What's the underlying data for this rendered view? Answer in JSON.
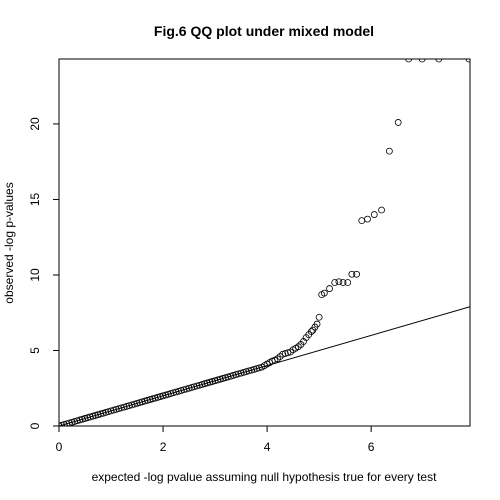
{
  "chart_data": {
    "type": "scatter",
    "title": "Fig.6 QQ plot under mixed model",
    "xlabel": "expected -log pvalue assuming null hypothesis true for every test",
    "ylabel": "observed -log p-values",
    "xlim": [
      0,
      7.9
    ],
    "ylim": [
      0,
      24.3
    ],
    "x_ticks": [
      0,
      2,
      4,
      6
    ],
    "x_tick_labels": [
      "0",
      "2",
      "4",
      "6"
    ],
    "y_ticks": [
      0,
      5,
      10,
      15,
      20
    ],
    "y_tick_labels": [
      "0",
      "5",
      "10",
      "15",
      "20"
    ],
    "grid": false,
    "reference_line": {
      "slope": 1,
      "intercept": 0
    },
    "points": [
      {
        "x": 0.0,
        "y": 0.0
      },
      {
        "x": 0.05,
        "y": 0.05
      },
      {
        "x": 0.1,
        "y": 0.1
      },
      {
        "x": 0.15,
        "y": 0.15
      },
      {
        "x": 0.2,
        "y": 0.2
      },
      {
        "x": 0.25,
        "y": 0.25
      },
      {
        "x": 0.3,
        "y": 0.3
      },
      {
        "x": 0.35,
        "y": 0.35
      },
      {
        "x": 0.4,
        "y": 0.4
      },
      {
        "x": 0.45,
        "y": 0.45
      },
      {
        "x": 0.5,
        "y": 0.5
      },
      {
        "x": 0.55,
        "y": 0.55
      },
      {
        "x": 0.6,
        "y": 0.6
      },
      {
        "x": 0.65,
        "y": 0.65
      },
      {
        "x": 0.7,
        "y": 0.7
      },
      {
        "x": 0.75,
        "y": 0.75
      },
      {
        "x": 0.8,
        "y": 0.8
      },
      {
        "x": 0.85,
        "y": 0.85
      },
      {
        "x": 0.9,
        "y": 0.9
      },
      {
        "x": 0.95,
        "y": 0.95
      },
      {
        "x": 1.0,
        "y": 1.0
      },
      {
        "x": 1.05,
        "y": 1.05
      },
      {
        "x": 1.1,
        "y": 1.1
      },
      {
        "x": 1.15,
        "y": 1.15
      },
      {
        "x": 1.2,
        "y": 1.2
      },
      {
        "x": 1.25,
        "y": 1.25
      },
      {
        "x": 1.3,
        "y": 1.3
      },
      {
        "x": 1.35,
        "y": 1.35
      },
      {
        "x": 1.4,
        "y": 1.4
      },
      {
        "x": 1.45,
        "y": 1.45
      },
      {
        "x": 1.5,
        "y": 1.5
      },
      {
        "x": 1.55,
        "y": 1.55
      },
      {
        "x": 1.6,
        "y": 1.6
      },
      {
        "x": 1.65,
        "y": 1.65
      },
      {
        "x": 1.7,
        "y": 1.7
      },
      {
        "x": 1.75,
        "y": 1.75
      },
      {
        "x": 1.8,
        "y": 1.8
      },
      {
        "x": 1.85,
        "y": 1.85
      },
      {
        "x": 1.9,
        "y": 1.9
      },
      {
        "x": 1.95,
        "y": 1.95
      },
      {
        "x": 2.0,
        "y": 2.0
      },
      {
        "x": 2.05,
        "y": 2.05
      },
      {
        "x": 2.1,
        "y": 2.1
      },
      {
        "x": 2.15,
        "y": 2.15
      },
      {
        "x": 2.2,
        "y": 2.2
      },
      {
        "x": 2.25,
        "y": 2.25
      },
      {
        "x": 2.3,
        "y": 2.3
      },
      {
        "x": 2.35,
        "y": 2.35
      },
      {
        "x": 2.4,
        "y": 2.4
      },
      {
        "x": 2.45,
        "y": 2.45
      },
      {
        "x": 2.5,
        "y": 2.5
      },
      {
        "x": 2.55,
        "y": 2.55
      },
      {
        "x": 2.6,
        "y": 2.6
      },
      {
        "x": 2.65,
        "y": 2.65
      },
      {
        "x": 2.7,
        "y": 2.7
      },
      {
        "x": 2.75,
        "y": 2.75
      },
      {
        "x": 2.8,
        "y": 2.8
      },
      {
        "x": 2.85,
        "y": 2.85
      },
      {
        "x": 2.9,
        "y": 2.9
      },
      {
        "x": 2.95,
        "y": 2.95
      },
      {
        "x": 3.0,
        "y": 3.0
      },
      {
        "x": 3.05,
        "y": 3.05
      },
      {
        "x": 3.1,
        "y": 3.1
      },
      {
        "x": 3.15,
        "y": 3.15
      },
      {
        "x": 3.2,
        "y": 3.2
      },
      {
        "x": 3.25,
        "y": 3.25
      },
      {
        "x": 3.3,
        "y": 3.3
      },
      {
        "x": 3.35,
        "y": 3.35
      },
      {
        "x": 3.4,
        "y": 3.4
      },
      {
        "x": 3.45,
        "y": 3.45
      },
      {
        "x": 3.5,
        "y": 3.5
      },
      {
        "x": 3.55,
        "y": 3.55
      },
      {
        "x": 3.6,
        "y": 3.6
      },
      {
        "x": 3.65,
        "y": 3.65
      },
      {
        "x": 3.7,
        "y": 3.7
      },
      {
        "x": 3.75,
        "y": 3.75
      },
      {
        "x": 3.8,
        "y": 3.8
      },
      {
        "x": 3.85,
        "y": 3.85
      },
      {
        "x": 3.9,
        "y": 3.9
      },
      {
        "x": 3.95,
        "y": 4.0
      },
      {
        "x": 4.0,
        "y": 4.1
      },
      {
        "x": 4.05,
        "y": 4.2
      },
      {
        "x": 4.1,
        "y": 4.3
      },
      {
        "x": 4.15,
        "y": 4.35
      },
      {
        "x": 4.2,
        "y": 4.45
      },
      {
        "x": 4.25,
        "y": 4.6
      },
      {
        "x": 4.3,
        "y": 4.75
      },
      {
        "x": 4.35,
        "y": 4.8
      },
      {
        "x": 4.4,
        "y": 4.85
      },
      {
        "x": 4.45,
        "y": 4.9
      },
      {
        "x": 4.5,
        "y": 5.05
      },
      {
        "x": 4.55,
        "y": 5.15
      },
      {
        "x": 4.6,
        "y": 5.25
      },
      {
        "x": 4.65,
        "y": 5.4
      },
      {
        "x": 4.7,
        "y": 5.6
      },
      {
        "x": 4.75,
        "y": 5.85
      },
      {
        "x": 4.8,
        "y": 6.05
      },
      {
        "x": 4.85,
        "y": 6.25
      },
      {
        "x": 4.88,
        "y": 6.35
      },
      {
        "x": 4.92,
        "y": 6.55
      },
      {
        "x": 4.96,
        "y": 6.75
      },
      {
        "x": 5.0,
        "y": 7.2
      },
      {
        "x": 5.05,
        "y": 8.7
      },
      {
        "x": 5.1,
        "y": 8.8
      },
      {
        "x": 5.2,
        "y": 9.1
      },
      {
        "x": 5.3,
        "y": 9.5
      },
      {
        "x": 5.38,
        "y": 9.55
      },
      {
        "x": 5.46,
        "y": 9.5
      },
      {
        "x": 5.55,
        "y": 9.5
      },
      {
        "x": 5.63,
        "y": 10.05
      },
      {
        "x": 5.72,
        "y": 10.05
      },
      {
        "x": 5.82,
        "y": 13.6
      },
      {
        "x": 5.93,
        "y": 13.7
      },
      {
        "x": 6.06,
        "y": 14.0
      },
      {
        "x": 6.2,
        "y": 14.3
      },
      {
        "x": 6.35,
        "y": 18.2
      },
      {
        "x": 6.52,
        "y": 20.1
      },
      {
        "x": 6.72,
        "y": 24.3
      },
      {
        "x": 6.98,
        "y": 24.3
      },
      {
        "x": 7.3,
        "y": 24.3
      },
      {
        "x": 7.88,
        "y": 24.3
      }
    ]
  }
}
